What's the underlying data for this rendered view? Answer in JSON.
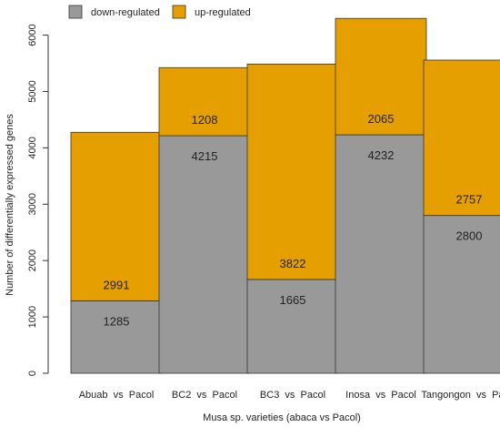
{
  "chart_data": {
    "type": "bar",
    "stacked": true,
    "categories": [
      "Abuab  vs  Pacol",
      "BC2  vs  Pacol",
      "BC3  vs  Pacol",
      "Inosa  vs  Pacol",
      "Tangongon  vs  Pacol"
    ],
    "series": [
      {
        "name": "down-regulated",
        "values": [
          1285,
          4215,
          1665,
          4232,
          2800
        ],
        "color": "#999999"
      },
      {
        "name": "up-regulated",
        "values": [
          2991,
          1208,
          3822,
          2065,
          2757
        ],
        "color": "#E69F00"
      }
    ],
    "xlabel": "Musa sp. varieties (abaca vs Pacol)",
    "ylabel": "Number of differentially expressed genes",
    "ylim": [
      0,
      6300
    ],
    "yticks": [
      0,
      1000,
      2000,
      3000,
      4000,
      5000,
      6000
    ],
    "grid": false,
    "legend": "top-left"
  }
}
